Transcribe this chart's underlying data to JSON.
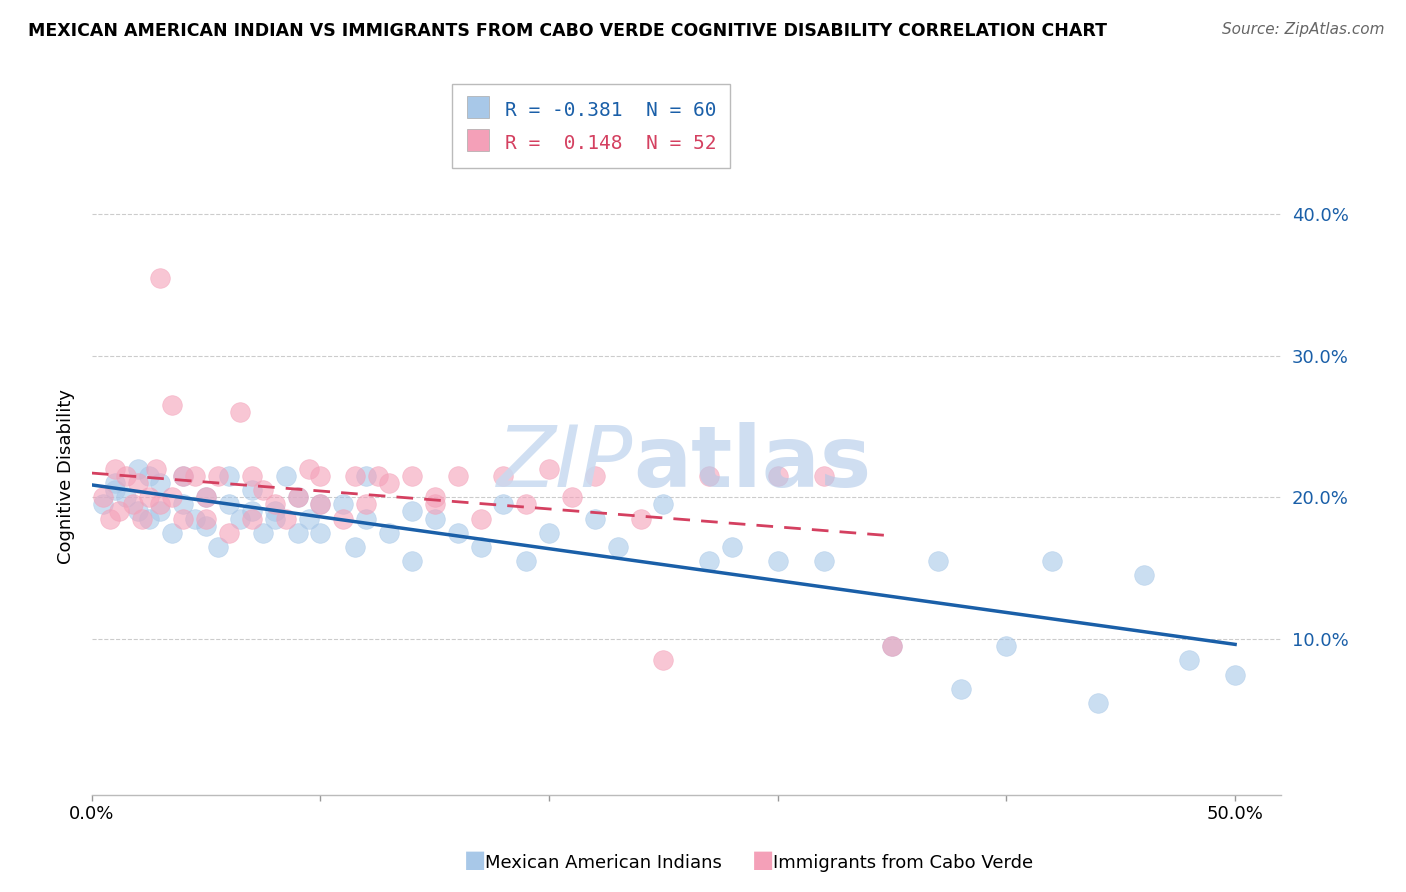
{
  "title": "MEXICAN AMERICAN INDIAN VS IMMIGRANTS FROM CABO VERDE COGNITIVE DISABILITY CORRELATION CHART",
  "source": "Source: ZipAtlas.com",
  "ylabel": "Cognitive Disability",
  "right_yticks": [
    "10.0%",
    "20.0%",
    "30.0%",
    "40.0%"
  ],
  "right_ytick_vals": [
    0.1,
    0.2,
    0.3,
    0.4
  ],
  "legend_blue_label": "R = -0.381  N = 60",
  "legend_pink_label": "R =  0.148  N = 52",
  "legend_footer_blue": "Mexican American Indians",
  "legend_footer_pink": "Immigrants from Cabo Verde",
  "blue_color": "#a8c8e8",
  "pink_color": "#f4a0b8",
  "blue_line_color": "#1a5fa8",
  "pink_line_color": "#d44060",
  "xlim": [
    0.0,
    0.52
  ],
  "ylim": [
    -0.01,
    0.44
  ],
  "figsize": [
    14.06,
    8.92
  ],
  "dpi": 100,
  "blue_scatter_x": [
    0.005,
    0.01,
    0.01,
    0.015,
    0.02,
    0.02,
    0.025,
    0.025,
    0.03,
    0.03,
    0.035,
    0.04,
    0.04,
    0.045,
    0.05,
    0.05,
    0.055,
    0.06,
    0.06,
    0.065,
    0.07,
    0.07,
    0.075,
    0.08,
    0.08,
    0.085,
    0.09,
    0.09,
    0.095,
    0.1,
    0.1,
    0.11,
    0.115,
    0.12,
    0.12,
    0.13,
    0.14,
    0.14,
    0.15,
    0.16,
    0.17,
    0.18,
    0.19,
    0.2,
    0.22,
    0.23,
    0.25,
    0.27,
    0.28,
    0.3,
    0.32,
    0.35,
    0.37,
    0.38,
    0.4,
    0.42,
    0.44,
    0.46,
    0.48,
    0.5
  ],
  "blue_scatter_y": [
    0.195,
    0.21,
    0.205,
    0.2,
    0.22,
    0.19,
    0.185,
    0.215,
    0.19,
    0.21,
    0.175,
    0.195,
    0.215,
    0.185,
    0.2,
    0.18,
    0.165,
    0.195,
    0.215,
    0.185,
    0.19,
    0.205,
    0.175,
    0.19,
    0.185,
    0.215,
    0.2,
    0.175,
    0.185,
    0.195,
    0.175,
    0.195,
    0.165,
    0.185,
    0.215,
    0.175,
    0.19,
    0.155,
    0.185,
    0.175,
    0.165,
    0.195,
    0.155,
    0.175,
    0.185,
    0.165,
    0.195,
    0.155,
    0.165,
    0.155,
    0.155,
    0.095,
    0.155,
    0.065,
    0.095,
    0.155,
    0.055,
    0.145,
    0.085,
    0.075
  ],
  "pink_scatter_x": [
    0.005,
    0.008,
    0.01,
    0.012,
    0.015,
    0.018,
    0.02,
    0.022,
    0.025,
    0.028,
    0.03,
    0.03,
    0.035,
    0.035,
    0.04,
    0.04,
    0.045,
    0.05,
    0.05,
    0.055,
    0.06,
    0.065,
    0.07,
    0.07,
    0.075,
    0.08,
    0.085,
    0.09,
    0.095,
    0.1,
    0.1,
    0.11,
    0.115,
    0.12,
    0.125,
    0.13,
    0.14,
    0.15,
    0.15,
    0.16,
    0.17,
    0.18,
    0.19,
    0.2,
    0.21,
    0.22,
    0.24,
    0.25,
    0.27,
    0.3,
    0.32,
    0.35
  ],
  "pink_scatter_y": [
    0.2,
    0.185,
    0.22,
    0.19,
    0.215,
    0.195,
    0.21,
    0.185,
    0.2,
    0.22,
    0.195,
    0.355,
    0.265,
    0.2,
    0.215,
    0.185,
    0.215,
    0.185,
    0.2,
    0.215,
    0.175,
    0.26,
    0.215,
    0.185,
    0.205,
    0.195,
    0.185,
    0.2,
    0.22,
    0.195,
    0.215,
    0.185,
    0.215,
    0.195,
    0.215,
    0.21,
    0.215,
    0.195,
    0.2,
    0.215,
    0.185,
    0.215,
    0.195,
    0.22,
    0.2,
    0.215,
    0.185,
    0.085,
    0.215,
    0.215,
    0.215,
    0.095
  ]
}
